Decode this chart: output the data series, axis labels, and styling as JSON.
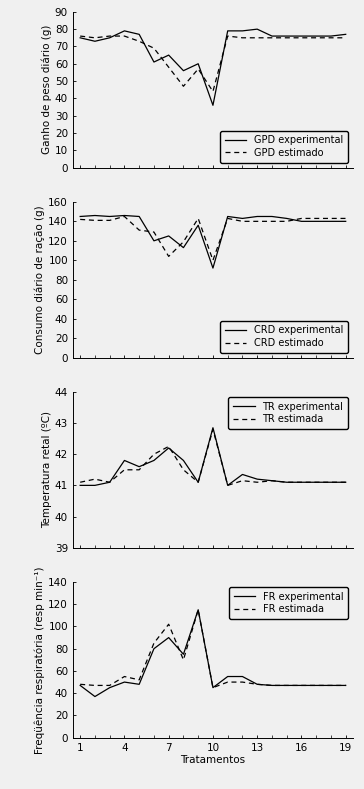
{
  "x": [
    1,
    2,
    3,
    4,
    5,
    6,
    7,
    8,
    9,
    10,
    11,
    12,
    13,
    14,
    15,
    16,
    17,
    18,
    19
  ],
  "xticks": [
    1,
    4,
    7,
    10,
    13,
    16,
    19
  ],
  "xlim": [
    0.5,
    19.5
  ],
  "gpd_exp": [
    75,
    73,
    75,
    79,
    77,
    61,
    65,
    56,
    60,
    36,
    79,
    79,
    80,
    76,
    76,
    76,
    76,
    76,
    77
  ],
  "gpd_est": [
    76,
    75,
    76,
    76,
    73,
    69,
    58,
    47,
    57,
    44,
    76,
    75,
    75,
    75,
    75,
    75,
    75,
    75,
    75
  ],
  "crd_exp": [
    145,
    146,
    145,
    146,
    145,
    120,
    125,
    113,
    136,
    92,
    145,
    143,
    145,
    145,
    143,
    140,
    140,
    140,
    140
  ],
  "crd_est": [
    142,
    141,
    141,
    145,
    131,
    129,
    104,
    119,
    143,
    100,
    143,
    140,
    140,
    140,
    140,
    143,
    143,
    143,
    143
  ],
  "tr_exp": [
    41.0,
    41.0,
    41.1,
    41.8,
    41.6,
    41.8,
    42.2,
    41.8,
    41.1,
    42.85,
    41.0,
    41.35,
    41.2,
    41.15,
    41.1,
    41.1,
    41.1,
    41.1,
    41.1
  ],
  "tr_est": [
    41.1,
    41.2,
    41.1,
    41.5,
    41.5,
    42.0,
    42.25,
    41.5,
    41.1,
    42.8,
    41.0,
    41.15,
    41.1,
    41.15,
    41.1,
    41.1,
    41.1,
    41.1,
    41.1
  ],
  "fr_exp": [
    47,
    37,
    45,
    50,
    48,
    80,
    90,
    75,
    115,
    45,
    55,
    55,
    48,
    47,
    47,
    47,
    47,
    47,
    47
  ],
  "fr_est": [
    48,
    47,
    47,
    55,
    52,
    85,
    102,
    70,
    115,
    45,
    50,
    50,
    48,
    47,
    47,
    47,
    47,
    47,
    47
  ],
  "gpd_ylim": [
    0,
    90
  ],
  "gpd_yticks": [
    0,
    10,
    20,
    30,
    40,
    50,
    60,
    70,
    80,
    90
  ],
  "crd_ylim": [
    0,
    160
  ],
  "crd_yticks": [
    0,
    20,
    40,
    60,
    80,
    100,
    120,
    140,
    160
  ],
  "tr_ylim": [
    39,
    44
  ],
  "tr_yticks": [
    39,
    40,
    41,
    42,
    43,
    44
  ],
  "fr_ylim": [
    0,
    140
  ],
  "fr_yticks": [
    0,
    20,
    40,
    60,
    80,
    100,
    120,
    140
  ],
  "gpd_ylabel": "Ganho de peso diário (g)",
  "crd_ylabel": "Consumo diário de ração (g)",
  "tr_ylabel": "Temperatura retal (ºC)",
  "fr_ylabel": "Freqüência respiratória (resp min⁻¹)",
  "xlabel": "Tratamentos",
  "line_color": "#000000",
  "bg_color": "#f0f0f0",
  "fontsize": 7.5,
  "label_fontsize": 7.5,
  "legend_fontsize": 7
}
